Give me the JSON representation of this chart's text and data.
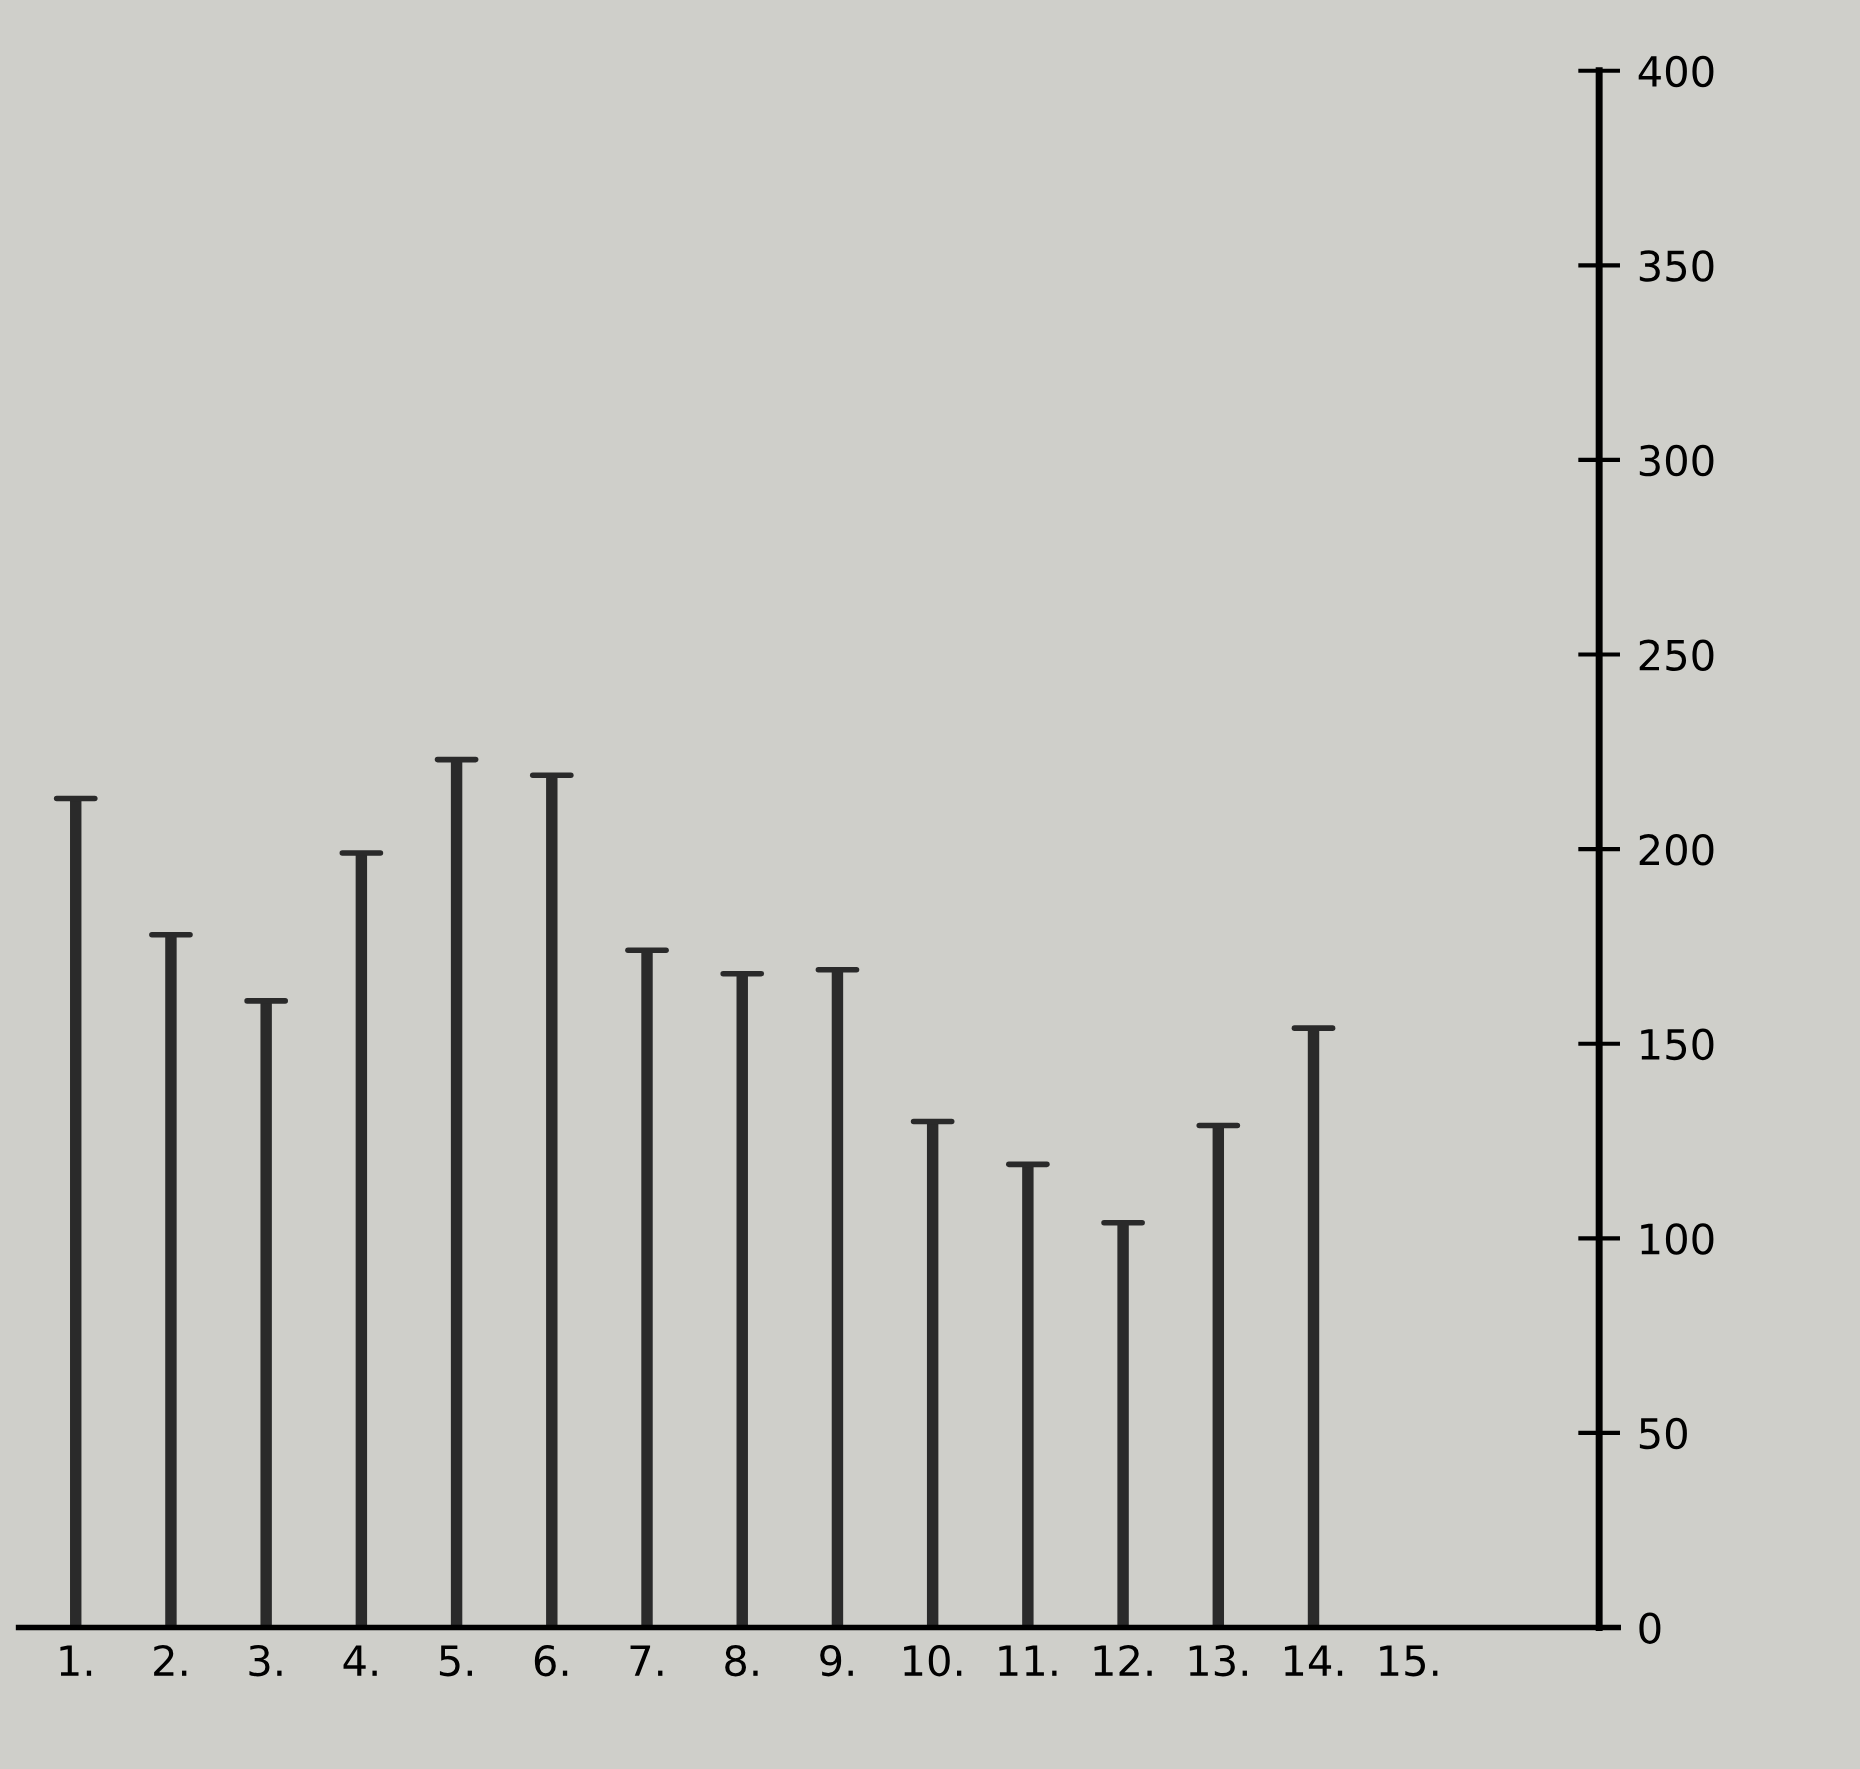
{
  "chart_data": {
    "type": "bar",
    "categories": [
      "1.",
      "2.",
      "3.",
      "4.",
      "5.",
      "6.",
      "7.",
      "8.",
      "9.",
      "10.",
      "11.",
      "12.",
      "13.",
      "14.",
      "15."
    ],
    "values": [
      213,
      178,
      161,
      199,
      223,
      219,
      174,
      168,
      169,
      130,
      119,
      104,
      129,
      154,
      null
    ],
    "color": "#2a2a2a",
    "ylim": [
      0,
      400
    ],
    "yticks": [
      0,
      50,
      100,
      150,
      200,
      250,
      300,
      350,
      400
    ],
    "grid": false,
    "legend": false
  }
}
